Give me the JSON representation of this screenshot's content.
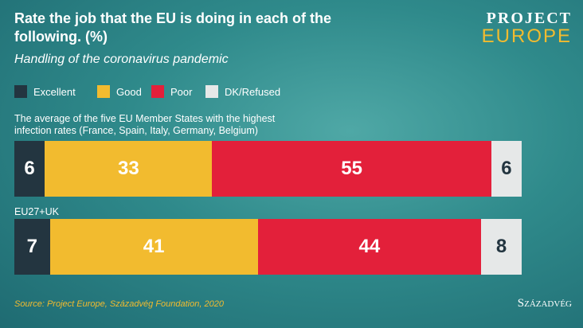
{
  "chart_data": {
    "type": "bar",
    "orientation": "horizontal",
    "stacked": true,
    "title": "Rate the job that the EU is doing in each of the following. (%)",
    "subtitle": "Handling of the coronavirus pandemic",
    "categories": [
      "The average of the five EU Member States with the highest infection rates (France, Spain, Italy, Germany, Belgium)",
      "EU27+UK"
    ],
    "series": [
      {
        "name": "Excellent",
        "color": "#233540",
        "values": [
          6,
          7
        ]
      },
      {
        "name": "Good",
        "color": "#f2bb2f",
        "values": [
          33,
          41
        ]
      },
      {
        "name": "Poor",
        "color": "#e3203a",
        "values": [
          55,
          44
        ]
      },
      {
        "name": "DK/Refused",
        "color": "#e6e8e8",
        "values": [
          6,
          8
        ]
      }
    ],
    "source": "Source: Project Europe, Századvég Foundation, 2020"
  },
  "logo": {
    "top": "PROJECT",
    "bottom": "EUROPE"
  },
  "footer_logo": "Századvég"
}
